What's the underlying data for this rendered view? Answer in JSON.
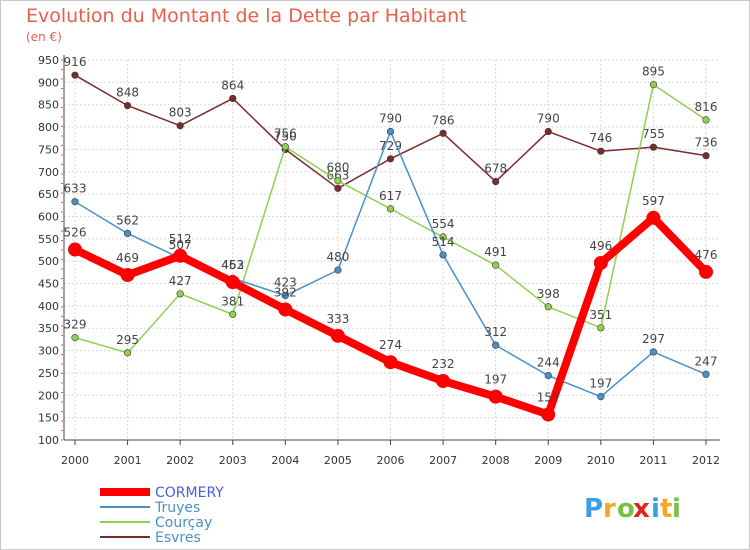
{
  "chart_data": {
    "type": "line",
    "title": "Evolution du Montant de la Dette par Habitant",
    "subtitle": "(en €)",
    "xlabel": "",
    "ylabel": "",
    "ylim": [
      100,
      950
    ],
    "yticks": [
      100,
      150,
      200,
      250,
      300,
      350,
      400,
      450,
      500,
      550,
      600,
      650,
      700,
      750,
      800,
      850,
      900,
      950
    ],
    "categories": [
      "2000",
      "2001",
      "2002",
      "2003",
      "2004",
      "2005",
      "2006",
      "2007",
      "2008",
      "2009",
      "2010",
      "2011",
      "2012"
    ],
    "grid": true,
    "legend_position": "bottom-left",
    "series": [
      {
        "name": "CORMERY",
        "color": "#ff0000",
        "values": [
          526,
          469,
          512,
          453,
          392,
          333,
          274,
          232,
          197,
          157,
          496,
          597,
          476
        ]
      },
      {
        "name": "Truyes",
        "color": "#4a90c8",
        "values": [
          633,
          562,
          507,
          462,
          423,
          480,
          790,
          514,
          312,
          244,
          197,
          297,
          247
        ]
      },
      {
        "name": "Courçay",
        "color": "#8fd14f",
        "values": [
          329,
          295,
          427,
          381,
          756,
          680,
          617,
          554,
          491,
          398,
          351,
          895,
          816
        ]
      },
      {
        "name": "Esvres",
        "color": "#7a2b2b",
        "values": [
          916,
          848,
          803,
          864,
          750,
          663,
          729,
          786,
          678,
          790,
          746,
          755,
          736
        ]
      }
    ]
  },
  "brand": {
    "letters": [
      "P",
      "r",
      "o",
      "x",
      "i",
      "t",
      "i"
    ],
    "colors": [
      "#3aa0e0",
      "#f5a623",
      "#7ac143",
      "#e2231a",
      "#3aa0e0",
      "#f5a623",
      "#7ac143"
    ]
  }
}
